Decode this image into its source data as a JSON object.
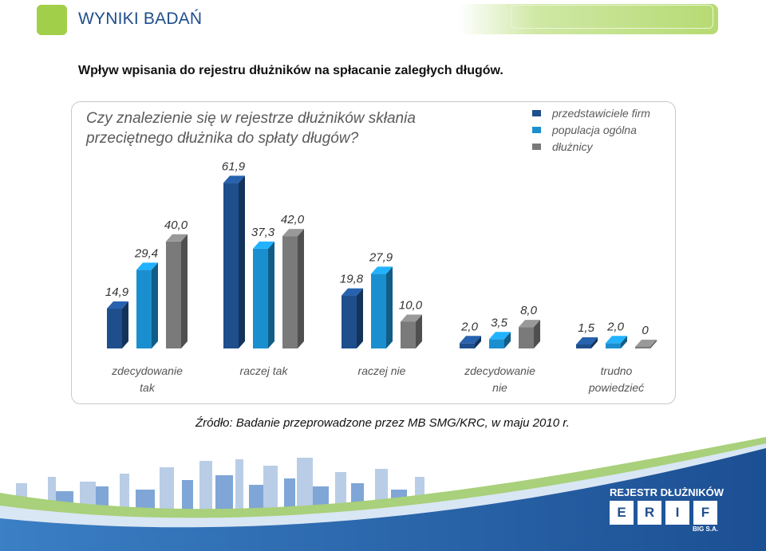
{
  "header": {
    "title": "WYNIKI BADAŃ"
  },
  "subtitle": "Wpływ wpisania do rejestru dłużników na spłacanie zaległych długów.",
  "source": "Źródło: Badanie przeprowadzone przez MB SMG/KRC, w maju 2010 r.",
  "colors": {
    "accent_green": "#a2cf4a",
    "title_blue": "#1f4e8c"
  },
  "chart_data": {
    "type": "bar",
    "title_lines": [
      "Czy znalezienie się w rejestrze dłużników skłania",
      "przeciętnego dłużnika do spłaty długów?"
    ],
    "categories": [
      [
        "zdecydowanie",
        "tak"
      ],
      [
        "raczej tak"
      ],
      [
        "raczej nie"
      ],
      [
        "zdecydowanie",
        "nie"
      ],
      [
        "trudno",
        "powiedzieć"
      ]
    ],
    "series": [
      {
        "name": "przedstawiciele firm",
        "color": "#1f4e8c",
        "values": [
          14.9,
          61.9,
          19.8,
          2.0,
          1.5
        ]
      },
      {
        "name": "populacja ogólna",
        "color": "#1a8fd0",
        "values": [
          29.4,
          37.3,
          27.9,
          3.5,
          2.0
        ]
      },
      {
        "name": "dłużnicy",
        "color": "#7a7a7a",
        "values": [
          40.0,
          42.0,
          10.0,
          8.0,
          0
        ]
      }
    ],
    "data_labels": [
      [
        "14,9",
        "29,4",
        "40,0"
      ],
      [
        "61,9",
        "37,3",
        "42,0"
      ],
      [
        "19,8",
        "27,9",
        "10,0"
      ],
      [
        "2,0",
        "3,5",
        "8,0"
      ],
      [
        "1,5",
        "2,0",
        "0"
      ]
    ],
    "ylim": [
      0,
      62
    ],
    "legend_position": "top-right",
    "grid": false
  },
  "logo": {
    "title": "REJESTR DŁUŻNIKÓW",
    "letters": [
      "E",
      "R",
      "I",
      "F"
    ],
    "company": "BIG S.A."
  }
}
